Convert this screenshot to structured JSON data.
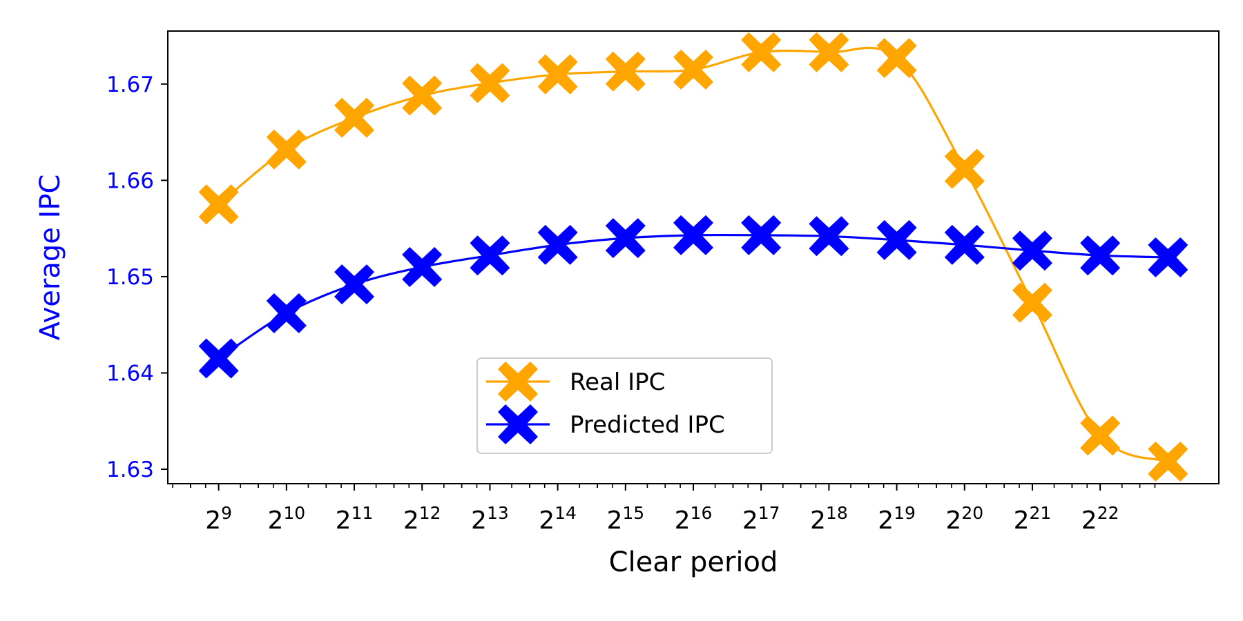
{
  "chart_data": {
    "type": "line",
    "title": "",
    "xlabel": "Clear period",
    "ylabel": "Average IPC",
    "x_tick_labels": [
      {
        "base": "2",
        "exp": "9"
      },
      {
        "base": "2",
        "exp": "10"
      },
      {
        "base": "2",
        "exp": "11"
      },
      {
        "base": "2",
        "exp": "12"
      },
      {
        "base": "2",
        "exp": "13"
      },
      {
        "base": "2",
        "exp": "14"
      },
      {
        "base": "2",
        "exp": "15"
      },
      {
        "base": "2",
        "exp": "16"
      },
      {
        "base": "2",
        "exp": "17"
      },
      {
        "base": "2",
        "exp": "18"
      },
      {
        "base": "2",
        "exp": "19"
      },
      {
        "base": "2",
        "exp": "20"
      },
      {
        "base": "2",
        "exp": "21"
      },
      {
        "base": "2",
        "exp": "22"
      }
    ],
    "x_log2": [
      9,
      10,
      11,
      12,
      13,
      14,
      15,
      16,
      17,
      18,
      19,
      20,
      21,
      22,
      23
    ],
    "xlim_log2": [
      8.25,
      23.75
    ],
    "ylim": [
      1.6285,
      1.6755
    ],
    "y_ticks": [
      1.63,
      1.64,
      1.65,
      1.66,
      1.67
    ],
    "y_tick_labels": [
      "1.63",
      "1.64",
      "1.65",
      "1.66",
      "1.67"
    ],
    "y_axis_color": "#0000ff",
    "legend": {
      "position": "lower center"
    },
    "series": [
      {
        "name": "Real IPC",
        "color": "#ffa500",
        "marker": "X",
        "values": [
          1.6575,
          1.6632,
          1.6665,
          1.6688,
          1.6701,
          1.671,
          1.6713,
          1.6715,
          1.6733,
          1.6733,
          1.6727,
          1.6612,
          1.6473,
          1.6335,
          1.6308
        ]
      },
      {
        "name": "Predicted IPC",
        "color": "#0000ff",
        "marker": "X",
        "values": [
          1.6415,
          1.6462,
          1.6492,
          1.651,
          1.6522,
          1.6533,
          1.654,
          1.6543,
          1.6543,
          1.6542,
          1.6538,
          1.6533,
          1.6527,
          1.6522,
          1.652
        ]
      }
    ]
  }
}
